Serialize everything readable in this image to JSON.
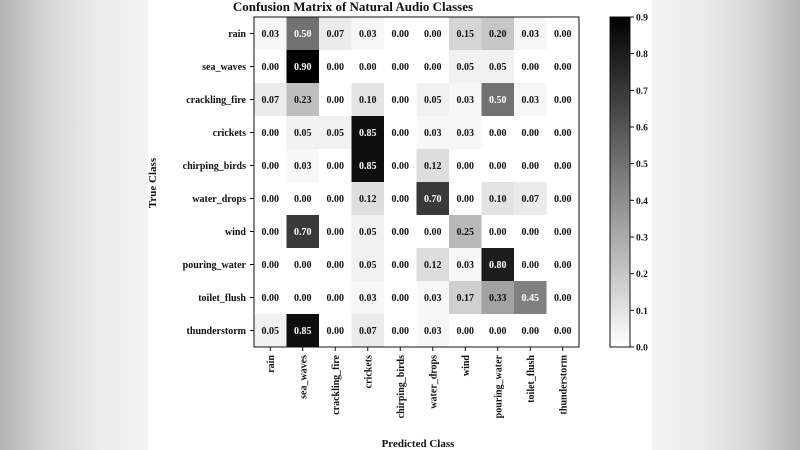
{
  "chart_data": {
    "type": "heatmap",
    "title": "Confusion Matrix of Natural Audio Classes",
    "xlabel": "Predicted Class",
    "ylabel": "True Class",
    "classes": [
      "rain",
      "sea_waves",
      "crackling_fire",
      "crickets",
      "chirping_birds",
      "water_drops",
      "wind",
      "pouring_water",
      "toilet_flush",
      "thunderstorm"
    ],
    "matrix": [
      [
        0.03,
        0.5,
        0.07,
        0.03,
        0.0,
        0.0,
        0.15,
        0.2,
        0.03,
        0.0
      ],
      [
        0.0,
        0.9,
        0.0,
        0.0,
        0.0,
        0.0,
        0.05,
        0.05,
        0.0,
        0.0
      ],
      [
        0.07,
        0.23,
        0.0,
        0.1,
        0.0,
        0.05,
        0.03,
        0.5,
        0.03,
        0.0
      ],
      [
        0.0,
        0.05,
        0.05,
        0.85,
        0.0,
        0.03,
        0.03,
        0.0,
        0.0,
        0.0
      ],
      [
        0.0,
        0.03,
        0.0,
        0.85,
        0.0,
        0.12,
        0.0,
        0.0,
        0.0,
        0.0
      ],
      [
        0.0,
        0.0,
        0.0,
        0.12,
        0.0,
        0.7,
        0.0,
        0.1,
        0.07,
        0.0
      ],
      [
        0.0,
        0.7,
        0.0,
        0.05,
        0.0,
        0.0,
        0.25,
        0.0,
        0.0,
        0.0
      ],
      [
        0.0,
        0.0,
        0.0,
        0.05,
        0.0,
        0.12,
        0.03,
        0.8,
        0.0,
        0.0
      ],
      [
        0.0,
        0.0,
        0.0,
        0.03,
        0.0,
        0.03,
        0.17,
        0.33,
        0.45,
        0.0
      ],
      [
        0.05,
        0.85,
        0.0,
        0.07,
        0.0,
        0.03,
        0.0,
        0.0,
        0.0,
        0.0
      ]
    ],
    "colorbar": {
      "range": [
        0.0,
        0.9
      ],
      "ticks": [
        "0.0",
        "0.1",
        "0.2",
        "0.3",
        "0.4",
        "0.5",
        "0.6",
        "0.7",
        "0.8",
        "0.9"
      ],
      "colormap": "Greys",
      "low_color": "#ffffff",
      "high_color": "#000000"
    }
  }
}
